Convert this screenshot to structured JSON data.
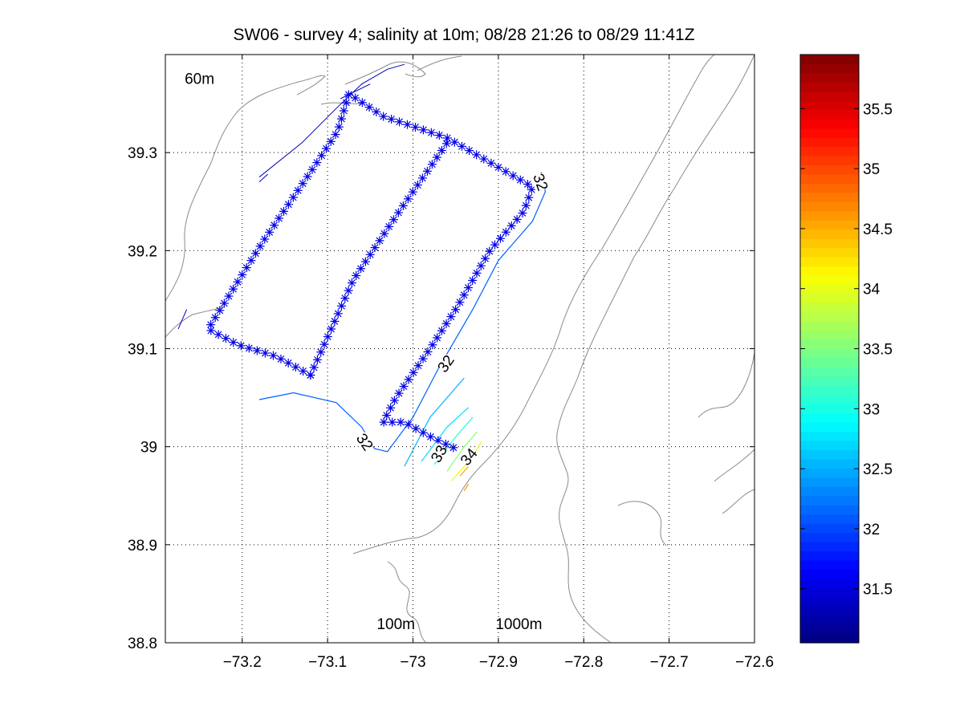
{
  "chart_data": {
    "type": "scatter",
    "title": "SW06 - survey 4; salinity at 10m; 08/28 21:26 to 08/29 11:41Z",
    "xlabel": "",
    "ylabel": "",
    "xlim": [
      -73.29,
      -72.6
    ],
    "ylim": [
      38.8,
      39.4
    ],
    "grid": true,
    "x_ticks": [
      -73.2,
      -73.1,
      -73.0,
      -72.9,
      -72.8,
      -72.7,
      -72.6
    ],
    "x_tick_labels": [
      "−73.2",
      "−73.1",
      "−73",
      "−72.9",
      "−72.8",
      "−72.7",
      "−72.6"
    ],
    "y_ticks": [
      38.8,
      38.9,
      39.0,
      39.1,
      39.2,
      39.3
    ],
    "y_tick_labels": [
      "38.8",
      "38.9",
      "39",
      "39.1",
      "39.2",
      "39.3"
    ],
    "annotations": [
      {
        "text": "60m",
        "x": -73.25,
        "y": 39.37
      },
      {
        "text": "100m",
        "x": -73.02,
        "y": 38.814
      },
      {
        "text": "1000m",
        "x": -72.876,
        "y": 38.814
      }
    ],
    "contour_labels": [
      {
        "text": "32",
        "x": -72.85,
        "y": 39.27,
        "rotate": 70
      },
      {
        "text": "32",
        "x": -72.962,
        "y": 39.085,
        "rotate": -55
      },
      {
        "text": "32",
        "x": -73.056,
        "y": 39.005,
        "rotate": 55
      },
      {
        "text": "33",
        "x": -72.97,
        "y": 38.993,
        "rotate": -60
      },
      {
        "text": "34",
        "x": -72.935,
        "y": 38.99,
        "rotate": -50
      }
    ],
    "colorbar": {
      "min": 31.05,
      "max": 35.95,
      "ticks": [
        31.5,
        32,
        32.5,
        33,
        33.5,
        34,
        34.5,
        35,
        35.5
      ],
      "tick_labels": [
        "31.5",
        "32",
        "32.5",
        "33",
        "33.5",
        "34",
        "34.5",
        "35",
        "35.5"
      ],
      "colormap": "jet"
    },
    "track": {
      "symbol": "asterisk",
      "color": "#0000e6",
      "vertices": [
        [
          -73.12,
          39.073
        ],
        [
          -73.16,
          39.092
        ],
        [
          -73.205,
          39.104
        ],
        [
          -73.24,
          39.12
        ],
        [
          -73.175,
          39.21
        ],
        [
          -73.12,
          39.28
        ],
        [
          -73.088,
          39.322
        ],
        [
          -73.075,
          39.36
        ],
        [
          -73.035,
          39.337
        ],
        [
          -72.96,
          39.315
        ],
        [
          -72.9,
          39.285
        ],
        [
          -72.86,
          39.265
        ],
        [
          -72.87,
          39.24
        ],
        [
          -72.91,
          39.2
        ],
        [
          -72.95,
          39.14
        ],
        [
          -72.98,
          39.1
        ],
        [
          -73.02,
          39.05
        ],
        [
          -73.035,
          39.025
        ],
        [
          -73.01,
          39.025
        ],
        [
          -72.975,
          39.008
        ],
        [
          -72.945,
          38.996
        ]
      ],
      "inner_leg": [
        [
          -73.12,
          39.073
        ],
        [
          -73.07,
          39.17
        ],
        [
          -73.02,
          39.235
        ],
        [
          -72.96,
          39.31
        ]
      ]
    },
    "salinity_contours": [
      {
        "level": 32,
        "color": "#0060ff",
        "points": [
          [
            -73.18,
            39.048
          ],
          [
            -73.14,
            39.055
          ],
          [
            -73.09,
            39.045
          ],
          [
            -73.06,
            39.02
          ],
          [
            -73.045,
            38.998
          ],
          [
            -73.03,
            38.995
          ],
          [
            -73.0,
            39.03
          ],
          [
            -72.97,
            39.08
          ],
          [
            -72.93,
            39.14
          ],
          [
            -72.9,
            39.19
          ],
          [
            -72.86,
            39.23
          ],
          [
            -72.845,
            39.26
          ],
          [
            -72.85,
            39.28
          ]
        ]
      },
      {
        "level": 32.5,
        "color": "#00b4ff",
        "points": [
          [
            -73.01,
            38.98
          ],
          [
            -72.98,
            39.03
          ],
          [
            -72.94,
            39.07
          ]
        ]
      },
      {
        "level": 32.8,
        "color": "#00e0ff",
        "points": [
          [
            -72.99,
            38.985
          ],
          [
            -72.96,
            39.02
          ],
          [
            -72.935,
            39.04
          ]
        ]
      },
      {
        "level": 33,
        "color": "#20ffd8",
        "points": [
          [
            -72.975,
            38.982
          ],
          [
            -72.95,
            39.01
          ],
          [
            -72.93,
            39.03
          ]
        ]
      },
      {
        "level": 33.5,
        "color": "#80ff70",
        "points": [
          [
            -72.96,
            38.975
          ],
          [
            -72.94,
            39.0
          ],
          [
            -72.925,
            39.015
          ]
        ]
      },
      {
        "level": 34,
        "color": "#e8ff10",
        "points": [
          [
            -72.955,
            38.965
          ],
          [
            -72.93,
            38.99
          ],
          [
            -72.92,
            39.005
          ]
        ]
      },
      {
        "level": 34.5,
        "color": "#ffaa00",
        "points": [
          [
            -72.945,
            38.97
          ],
          [
            -72.925,
            38.99
          ]
        ]
      },
      {
        "level": 34.7,
        "color": "#ff9000",
        "points": [
          [
            -72.94,
            38.955
          ],
          [
            -72.935,
            38.962
          ]
        ]
      }
    ],
    "track_fragments": [
      {
        "color": "#0000c0",
        "points": [
          [
            -73.18,
            39.275
          ],
          [
            -73.13,
            39.31
          ],
          [
            -73.09,
            39.345
          ],
          [
            -73.06,
            39.37
          ],
          [
            -73.03,
            39.385
          ],
          [
            -73.01,
            39.39
          ]
        ]
      },
      {
        "color": "#0000c0",
        "points": [
          [
            -73.18,
            39.27
          ],
          [
            -73.17,
            39.278
          ]
        ]
      },
      {
        "color": "#0000c0",
        "points": [
          [
            -73.275,
            39.12
          ],
          [
            -73.265,
            39.14
          ]
        ]
      },
      {
        "color": "#0000c0",
        "points": [
          [
            -73.05,
            39.37
          ],
          [
            -73.085,
            39.355
          ]
        ]
      }
    ]
  }
}
